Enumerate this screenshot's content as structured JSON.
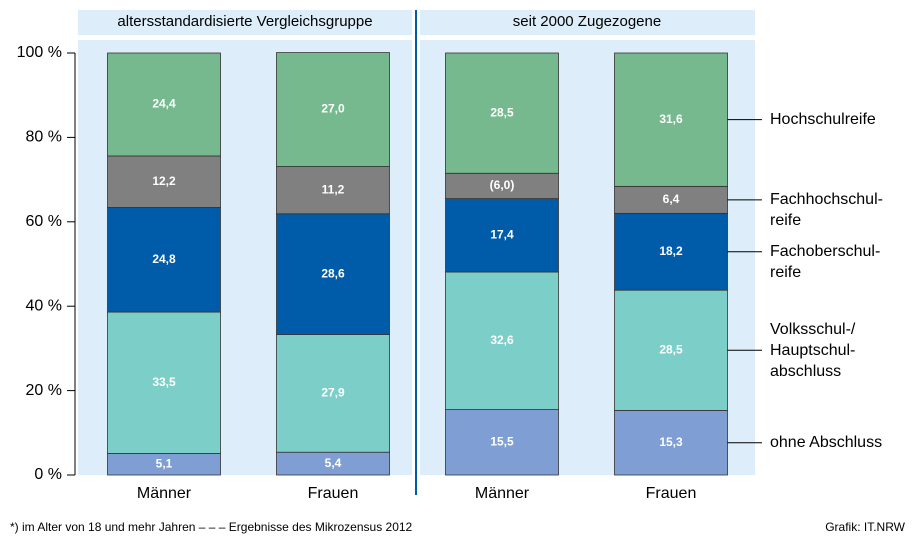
{
  "chart_data": {
    "type": "stacked_bar",
    "groups": [
      "altersstandardisierte Vergleichsgruppe",
      "seit 2000 Zugezogene"
    ],
    "categories": [
      "Männer",
      "Frauen",
      "Männer",
      "Frauen"
    ],
    "series": [
      {
        "name": "ohne Abschluss",
        "color": "#7f9fd4",
        "values": [
          5.1,
          5.4,
          15.5,
          15.3
        ],
        "value_labels": [
          "5,1",
          "5,4",
          "15,5",
          "15,3"
        ]
      },
      {
        "name": "Volksschul-/\nHauptschul-\nabschluss",
        "color": "#7ccfc8",
        "values": [
          33.5,
          27.9,
          32.6,
          28.5
        ],
        "value_labels": [
          "33,5",
          "27,9",
          "32,6",
          "28,5"
        ]
      },
      {
        "name": "Fachoberschul-\nreife",
        "color": "#005ca9",
        "values": [
          24.8,
          28.6,
          17.4,
          18.2
        ],
        "value_labels": [
          "24,8",
          "28,6",
          "17,4",
          "18,2"
        ]
      },
      {
        "name": "Fachhochschul-\nreife",
        "color": "#808080",
        "values": [
          12.2,
          11.2,
          6.0,
          6.4
        ],
        "value_labels": [
          "12,2",
          "11,2",
          "(6,0)",
          "6,4"
        ]
      },
      {
        "name": "Hochschulreife",
        "color": "#76b98f",
        "values": [
          24.4,
          27.0,
          28.5,
          31.6
        ],
        "value_labels": [
          "24,4",
          "27,0",
          "28,5",
          "31,6"
        ]
      }
    ],
    "ylim": [
      0,
      100
    ],
    "yticks": [
      {
        "value": 0,
        "label": "0 %"
      },
      {
        "value": 20,
        "label": "20 %"
      },
      {
        "value": 40,
        "label": "40 %"
      },
      {
        "value": 60,
        "label": "60 %"
      },
      {
        "value": 80,
        "label": "80 %"
      },
      {
        "value": 100,
        "label": "100 %"
      }
    ],
    "footnote": "*)  im Alter von 18 und mehr Jahren – – – Ergebnisse des Mikrozensus 2012",
    "source": "Grafik: IT.NRW"
  }
}
